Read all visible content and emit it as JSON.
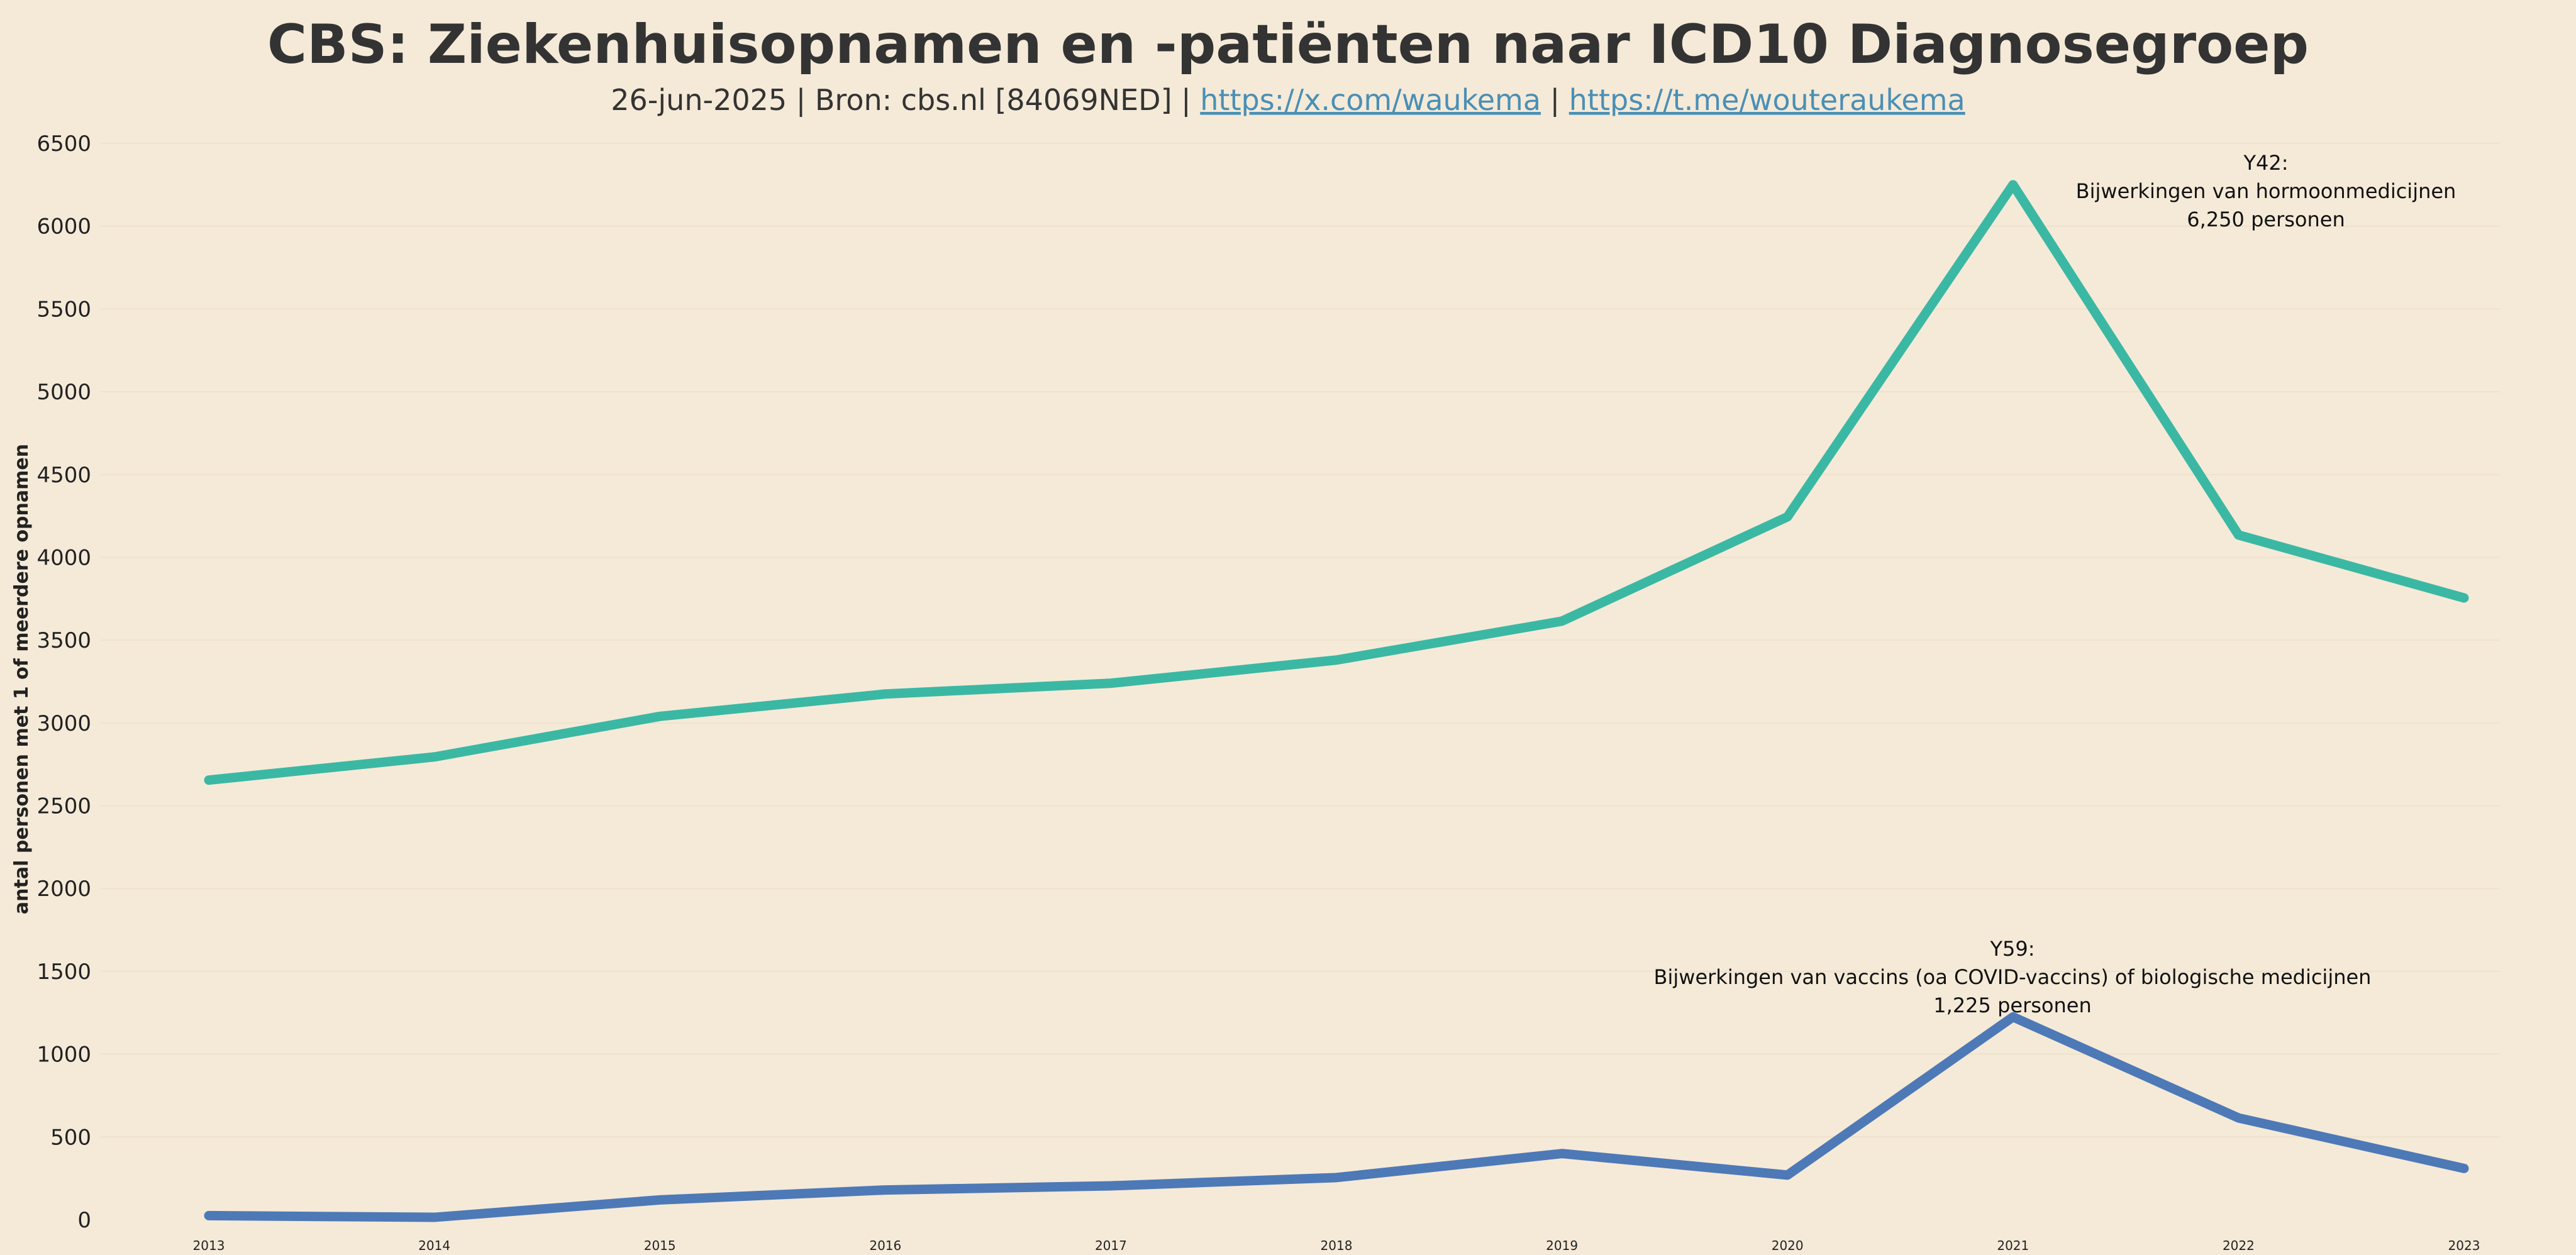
{
  "chart_data": {
    "type": "line",
    "title": "CBS: Ziekenhuisopnamen en -patiënten naar ICD10 Diagnosegroep",
    "subtitle": {
      "prefix": "26-jun-2025 | Bron: cbs.nl [84069NED] | ",
      "link1": "https://x.com/waukema",
      "separator": " | ",
      "link2": "https://t.me/wouteraukema"
    },
    "ylabel": "antal personen met 1 of meerdere opnamen",
    "xlabel": "",
    "x": [
      2013,
      2014,
      2015,
      2016,
      2017,
      2018,
      2019,
      2020,
      2021,
      2022,
      2023
    ],
    "ylim": [
      0,
      6500
    ],
    "yticks": [
      0,
      500,
      1000,
      1500,
      2000,
      2500,
      3000,
      3500,
      4000,
      4500,
      5000,
      5500,
      6000,
      6500
    ],
    "grid": true,
    "series": [
      {
        "key": "Y42",
        "color": "#3bb8a4",
        "values": [
          2655,
          2795,
          3040,
          3175,
          3240,
          3380,
          3615,
          4245,
          6250,
          4135,
          3755
        ]
      },
      {
        "key": "Y59",
        "color": "#4e79b7",
        "values": [
          25,
          15,
          120,
          180,
          205,
          255,
          400,
          270,
          1225,
          615,
          310
        ]
      }
    ],
    "annotations": [
      {
        "series": "Y42",
        "x": 2021,
        "lines": [
          "Y42:",
          "Bijwerkingen van hormoonmedicijnen",
          "6,250 personen"
        ]
      },
      {
        "series": "Y59",
        "x": 2021,
        "lines": [
          "Y59:",
          "Bijwerkingen van vaccins (oa COVID-vaccins) of biologische medicijnen",
          "1,225 personen"
        ]
      }
    ]
  }
}
